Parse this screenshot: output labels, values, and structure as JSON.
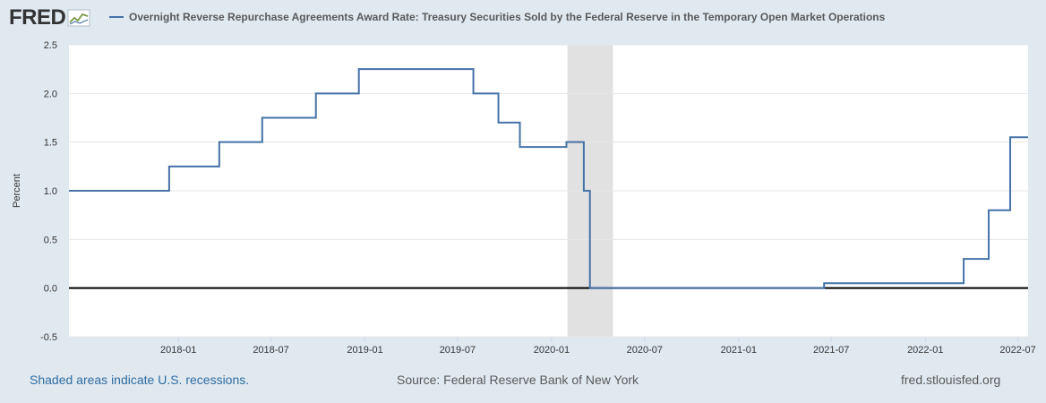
{
  "header": {
    "logo_text": "FRED",
    "logo_icon": "line-chart-icon"
  },
  "colors": {
    "background": "#e1e9f0",
    "plot_bg": "#ffffff",
    "series": "#4572a7",
    "recession": "#e1e1e1",
    "grid": "#e6e6e6",
    "zero_line": "#000000",
    "link": "#2d6ca2"
  },
  "footer": {
    "recession_note": "Shaded areas indicate U.S. recessions.",
    "source": "Source: Federal Reserve Bank of New York",
    "site": "fred.stlouisfed.org"
  },
  "chart_data": {
    "type": "line",
    "step": true,
    "ylabel": "Percent",
    "ylim": [
      -0.5,
      2.5
    ],
    "yticks": [
      "-0.5",
      "0.0",
      "0.5",
      "1.0",
      "1.5",
      "2.0",
      "2.5"
    ],
    "xlim": [
      "2017-06-01",
      "2022-07-21"
    ],
    "xticks": [
      "2018-01",
      "2018-07",
      "2019-01",
      "2019-07",
      "2020-01",
      "2020-07",
      "2021-01",
      "2021-07",
      "2022-01",
      "2022-07"
    ],
    "grid": "horizontal",
    "recession": {
      "start": "2020-02-01",
      "end": "2020-04-30"
    },
    "series": [
      {
        "name": "Overnight Reverse Repurchase Agreements Award Rate: Treasury Securities Sold by the Federal Reserve in the Temporary Open Market Operations",
        "x": [
          "2017-06-01",
          "2017-12-14",
          "2018-03-22",
          "2018-06-14",
          "2018-09-27",
          "2018-12-20",
          "2019-08-01",
          "2019-09-19",
          "2019-10-31",
          "2020-01-30",
          "2020-03-04",
          "2020-03-16",
          "2021-06-17",
          "2022-03-17",
          "2022-05-05",
          "2022-06-16",
          "2022-07-21"
        ],
        "y": [
          1.0,
          1.25,
          1.5,
          1.75,
          2.0,
          2.25,
          2.0,
          1.7,
          1.45,
          1.5,
          1.0,
          0.0,
          0.05,
          0.3,
          0.8,
          1.55,
          1.55
        ]
      }
    ]
  }
}
